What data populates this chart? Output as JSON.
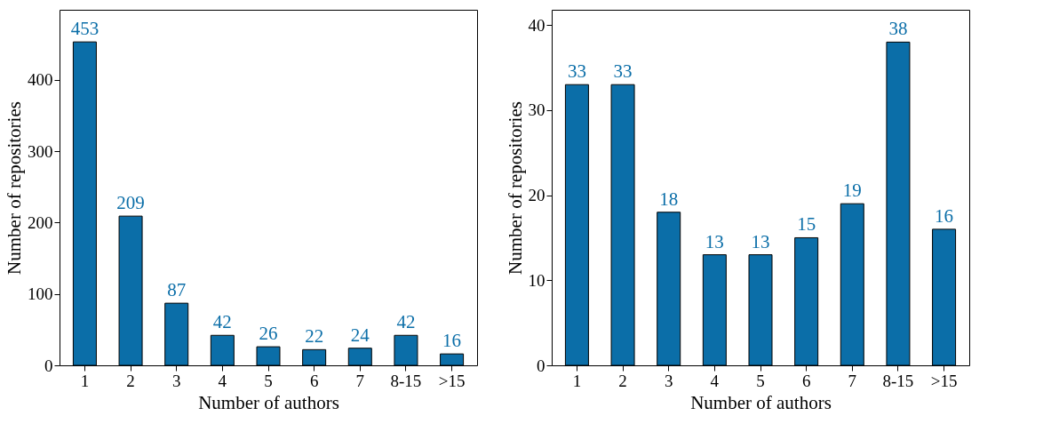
{
  "chart_data": [
    {
      "type": "bar",
      "categories": [
        "1",
        "2",
        "3",
        "4",
        "5",
        "6",
        "7",
        "8-15",
        ">15"
      ],
      "values": [
        453,
        209,
        87,
        42,
        26,
        22,
        24,
        42,
        16
      ],
      "color": "#0b6ea8",
      "xlabel": "Number of authors",
      "ylabel": "Number of repositories",
      "ylim": [
        0,
        498
      ],
      "yticks": [
        0,
        100,
        200,
        300,
        400
      ],
      "data_labels": true,
      "grid": false
    },
    {
      "type": "bar",
      "categories": [
        "1",
        "2",
        "3",
        "4",
        "5",
        "6",
        "7",
        "8-15",
        ">15"
      ],
      "values": [
        33,
        33,
        18,
        13,
        13,
        15,
        19,
        38,
        16
      ],
      "color": "#0b6ea8",
      "xlabel": "Number of authors",
      "ylabel": "Number of repositories",
      "ylim": [
        0,
        41.8
      ],
      "yticks": [
        0,
        10,
        20,
        30,
        40
      ],
      "data_labels": true,
      "grid": false
    }
  ]
}
